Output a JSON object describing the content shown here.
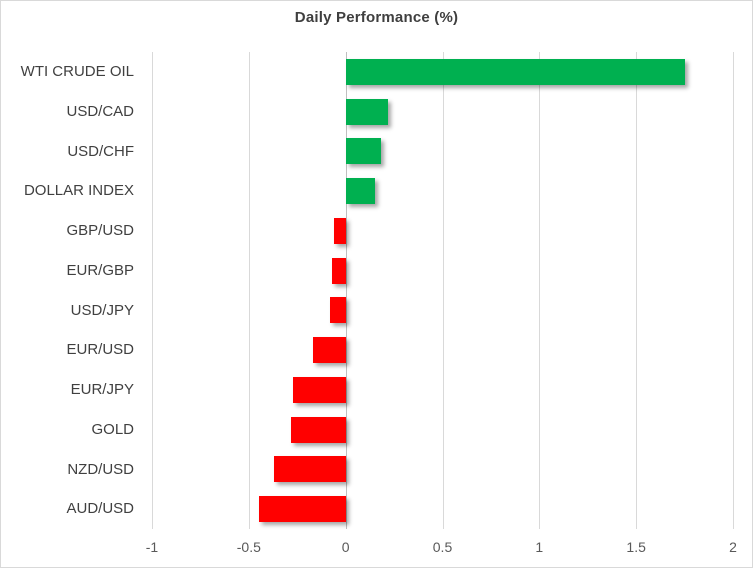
{
  "chart_data": {
    "type": "bar",
    "orientation": "horizontal",
    "title": "Daily Performance (%)",
    "categories": [
      "WTI CRUDE OIL",
      "USD/CAD",
      "USD/CHF",
      "DOLLAR INDEX",
      "GBP/USD",
      "EUR/GBP",
      "USD/JPY",
      "EUR/USD",
      "EUR/JPY",
      "GOLD",
      "NZD/USD",
      "AUD/USD"
    ],
    "values": [
      1.75,
      0.22,
      0.18,
      0.15,
      -0.06,
      -0.07,
      -0.08,
      -0.17,
      -0.27,
      -0.28,
      -0.37,
      -0.45
    ],
    "xlabel": "",
    "ylabel": "",
    "xlim": [
      -1,
      2
    ],
    "x_ticks": [
      -1,
      -0.5,
      0,
      0.5,
      1,
      1.5,
      2
    ],
    "x_tick_labels": [
      "-1",
      "-0.5",
      "0",
      "0.5",
      "1",
      "1.5",
      "2"
    ],
    "grid": "vertical-only",
    "legend": "none",
    "colors": {
      "positive": "#00B050",
      "negative": "#FF0000",
      "gridline": "#D9D9D9",
      "zero_axis": "#BFBFBF",
      "title_text": "#3F3F3F",
      "category_text": "#404040",
      "tick_text": "#595959",
      "border": "#D9D9D9",
      "background": "#FFFFFF"
    }
  }
}
